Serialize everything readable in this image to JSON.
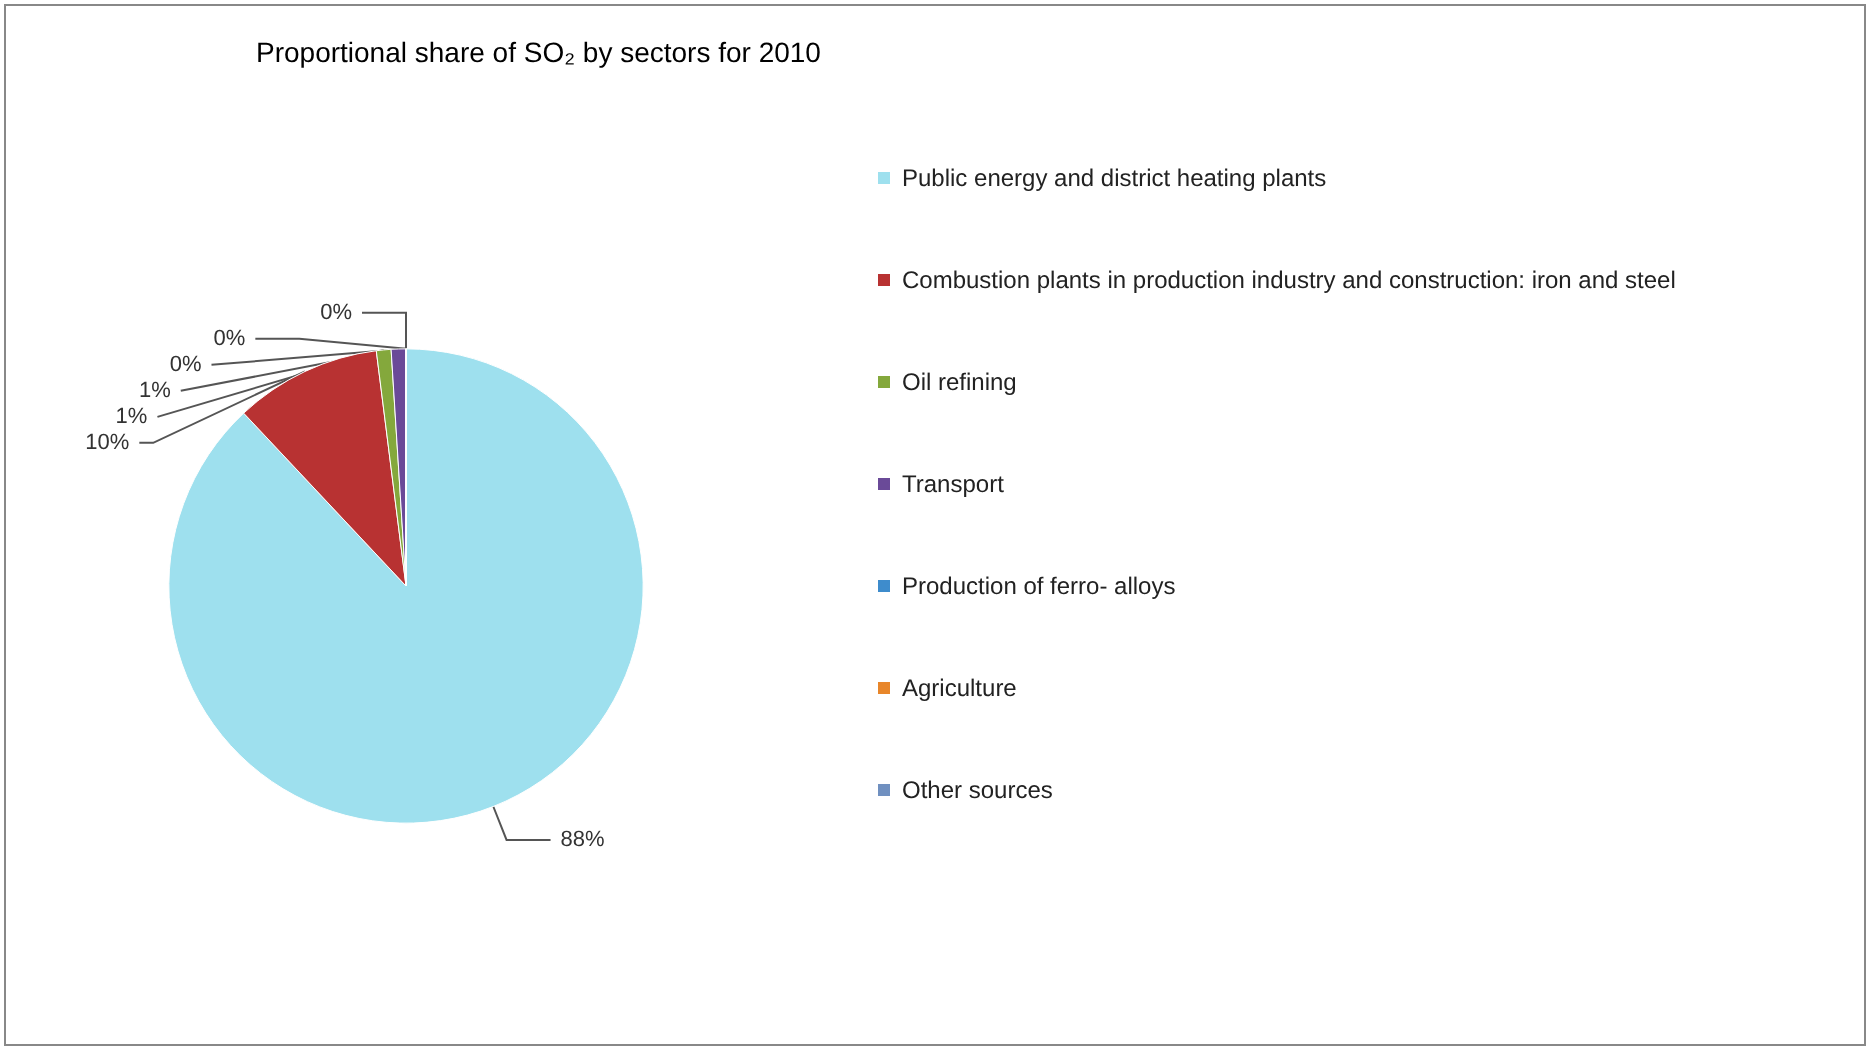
{
  "chart_data": {
    "type": "pie",
    "title": "Proportional share of SO₂ by sectors for 2010",
    "categories": [
      "Public energy and district heating plants",
      "Combustion plants in production industry and construction: iron and steel",
      "Oil refining",
      "Transport",
      "Production of ferro- alloys",
      "Agriculture",
      "Other sources"
    ],
    "values": [
      88,
      10,
      1,
      1,
      0,
      0,
      0
    ],
    "colors": [
      "#9ee0ee",
      "#b83232",
      "#84a83c",
      "#6a4a98",
      "#3e8ccc",
      "#e8862a",
      "#7090c0"
    ],
    "value_labels": [
      "88%",
      "10%",
      "1%",
      "1%",
      "0%",
      "0%",
      "0%"
    ],
    "legend": "right"
  }
}
